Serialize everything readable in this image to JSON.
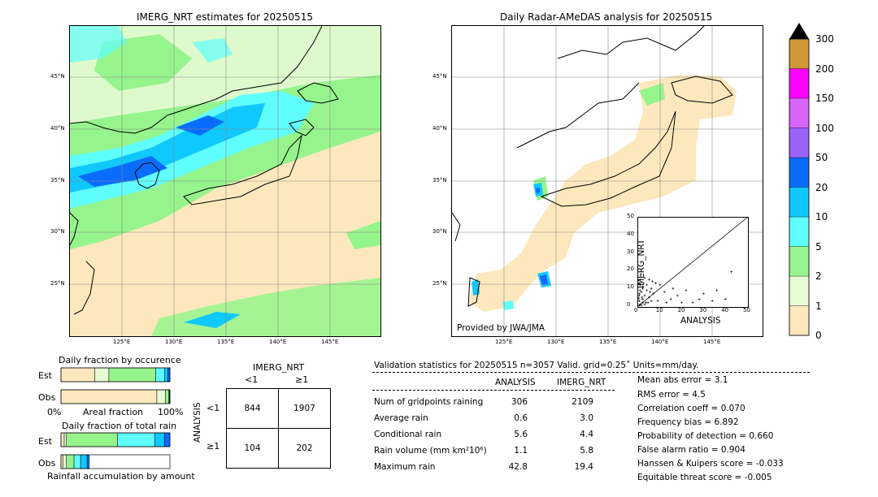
{
  "left_map": {
    "title": "IMERG_NRT estimates for 20250515",
    "lon_ticks": [
      "125°E",
      "130°E",
      "135°E",
      "140°E",
      "145°E"
    ],
    "lat_ticks": [
      "45°N",
      "40°N",
      "35°N",
      "30°N",
      "25°N"
    ]
  },
  "right_map": {
    "title": "Daily Radar-AMeDAS analysis for 20250515",
    "lon_ticks": [
      "125°E",
      "130°E",
      "135°E",
      "140°E",
      "145°E"
    ],
    "lat_ticks": [
      "45°N",
      "40°N",
      "35°N",
      "30°N",
      "25°N"
    ],
    "credit": "Provided by JWA/JMA"
  },
  "colorbar": {
    "levels": [
      "0",
      "1",
      "2",
      "5",
      "10",
      "20",
      "50",
      "100",
      "150",
      "200",
      "300"
    ],
    "colors": [
      "#fde8bd",
      "#e6fbd4",
      "#96f48c",
      "#5ffdfc",
      "#0fc8fd",
      "#0a6cfc",
      "#9c62fc",
      "#d964fc",
      "#fe00ff",
      "#cf9836"
    ],
    "over_color": "#000000"
  },
  "chart_data": [
    {
      "type": "scatter",
      "xlabel": "ANALYSIS",
      "ylabel": "IMERG_NRT",
      "xlim": [
        0,
        50
      ],
      "ylim": [
        0,
        50
      ],
      "x_ticks": [
        "0",
        "10",
        "20",
        "30",
        "40",
        "50"
      ],
      "y_ticks": [
        "0",
        "10",
        "20",
        "30",
        "40",
        "50"
      ],
      "points": [
        [
          0.5,
          3
        ],
        [
          0.5,
          6
        ],
        [
          0.8,
          9
        ],
        [
          1,
          12
        ],
        [
          1,
          15
        ],
        [
          1.2,
          18
        ],
        [
          1.5,
          8
        ],
        [
          2,
          4
        ],
        [
          2,
          10
        ],
        [
          2.5,
          13
        ],
        [
          3,
          6
        ],
        [
          3,
          16
        ],
        [
          3.5,
          2
        ],
        [
          4,
          9
        ],
        [
          4,
          12
        ],
        [
          5,
          5
        ],
        [
          5,
          15
        ],
        [
          6,
          3
        ],
        [
          6,
          10
        ],
        [
          7,
          7
        ],
        [
          8,
          13
        ],
        [
          9,
          3
        ],
        [
          10,
          12
        ],
        [
          12,
          8
        ],
        [
          13,
          2
        ],
        [
          15,
          4
        ],
        [
          16,
          10
        ],
        [
          18,
          6
        ],
        [
          20,
          2
        ],
        [
          22,
          9
        ],
        [
          25,
          2
        ],
        [
          28,
          4
        ],
        [
          30,
          7
        ],
        [
          34,
          3
        ],
        [
          36,
          9
        ],
        [
          40,
          4
        ],
        [
          42.8,
          19.4
        ],
        [
          0.5,
          0.5
        ],
        [
          1,
          1
        ],
        [
          1.5,
          0.5
        ],
        [
          2,
          2
        ],
        [
          3,
          1
        ],
        [
          0.3,
          4.5
        ],
        [
          0.6,
          7
        ],
        [
          1.8,
          5
        ],
        [
          2.2,
          11
        ],
        [
          0.4,
          13
        ],
        [
          4.5,
          2
        ],
        [
          5.5,
          8
        ],
        [
          6.5,
          14
        ]
      ],
      "diagonal": true
    },
    {
      "type": "bar",
      "title": "Daily fraction by occurence",
      "xlabel": "Areal fraction",
      "x_ticks": [
        "0%",
        "100%"
      ],
      "rows": [
        "Est",
        "Obs"
      ],
      "series": [
        {
          "values": [
            0.31,
            0.88
          ]
        },
        {
          "values": [
            0.13,
            0.08
          ]
        },
        {
          "values": [
            0.43,
            0.03
          ]
        },
        {
          "values": [
            0.08,
            0.005
          ]
        },
        {
          "values": [
            0.03,
            0.005
          ]
        },
        {
          "values": [
            0.02,
            0.0
          ]
        }
      ],
      "colors": [
        "#fde8bd",
        "#e6fbd4",
        "#96f48c",
        "#5ffdfc",
        "#0fc8fd",
        "#0a6cfc"
      ]
    },
    {
      "type": "bar",
      "title": "Daily fraction of total rain",
      "xlabel": "Rainfall accumulation by amount",
      "rows": [
        "Est",
        "Obs"
      ],
      "series": [
        {
          "values": [
            0.03,
            0.02
          ]
        },
        {
          "values": [
            0.02,
            0.03
          ]
        },
        {
          "values": [
            0.47,
            0.07
          ]
        },
        {
          "values": [
            0.34,
            0.06
          ]
        },
        {
          "values": [
            0.09,
            0.06
          ]
        },
        {
          "values": [
            0.05,
            0.02
          ]
        }
      ],
      "colors": [
        "#fde8bd",
        "#e6fbd4",
        "#96f48c",
        "#5ffdfc",
        "#0fc8fd",
        "#0a6cfc"
      ]
    },
    {
      "type": "table",
      "title": "IMERG_NRT",
      "col_headers": [
        "<1",
        "≥1"
      ],
      "row_label": "ANALYSIS",
      "row_headers": [
        "<1",
        "≥1"
      ],
      "cells": [
        [
          "844",
          "1907"
        ],
        [
          "104",
          "202"
        ]
      ]
    }
  ],
  "validation": {
    "header": "Validation statistics for 20250515  n=3057 Valid. grid=0.25˚ Units=mm/day.",
    "col_analysis": "ANALYSIS",
    "col_imerg": "IMERG_NRT",
    "rows": [
      {
        "label": "Num of gridpoints raining",
        "analysis": "306",
        "imerg": "2109"
      },
      {
        "label": "Average rain",
        "analysis": "0.6",
        "imerg": "3.0"
      },
      {
        "label": "Conditional rain",
        "analysis": "5.6",
        "imerg": "4.4"
      },
      {
        "label": "Rain volume (mm km²10⁶)",
        "analysis": "1.1",
        "imerg": "5.8"
      },
      {
        "label": "Maximum rain",
        "analysis": "42.8",
        "imerg": "19.4"
      }
    ],
    "scores": [
      "Mean abs error =    3.1",
      "RMS error =    4.5",
      "Correlation coeff =  0.070",
      "Frequency bias =  6.892",
      "Probability of detection =  0.660",
      "False alarm ratio =  0.904",
      "Hanssen & Kuipers score = -0.033",
      "Equitable threat score = -0.005"
    ]
  }
}
